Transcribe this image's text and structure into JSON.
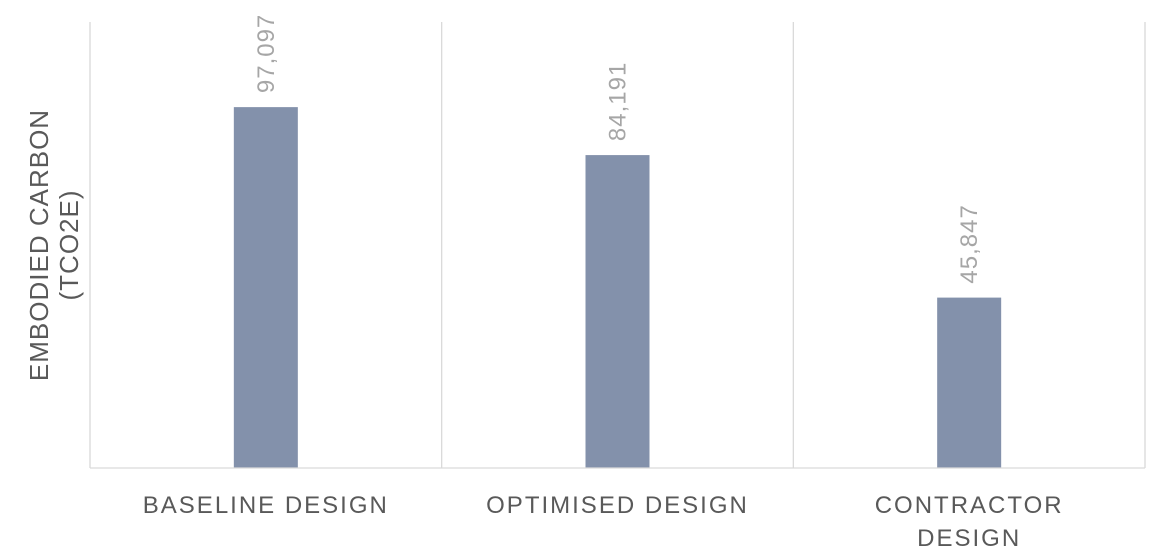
{
  "chart_data": {
    "type": "bar",
    "title": "",
    "xlabel": "",
    "ylabel_lines": [
      "EMBODIED CARBON",
      "(TCO2E)"
    ],
    "categories": [
      [
        "BASELINE DESIGN"
      ],
      [
        "OPTIMISED DESIGN"
      ],
      [
        "CONTRACTOR",
        "DESIGN"
      ]
    ],
    "values": [
      97097,
      84191,
      45847
    ],
    "value_labels": [
      "97,097",
      "84,191",
      "45,847"
    ],
    "ylim": [
      0,
      120000
    ],
    "grid": "vertical-separators",
    "legend": "none",
    "colors": {
      "bar": "#8391ab",
      "grid": "#d9d9d9",
      "axis": "#d9d9d9",
      "tick_text": "#595959",
      "data_label_text": "#a6a6a6"
    }
  }
}
